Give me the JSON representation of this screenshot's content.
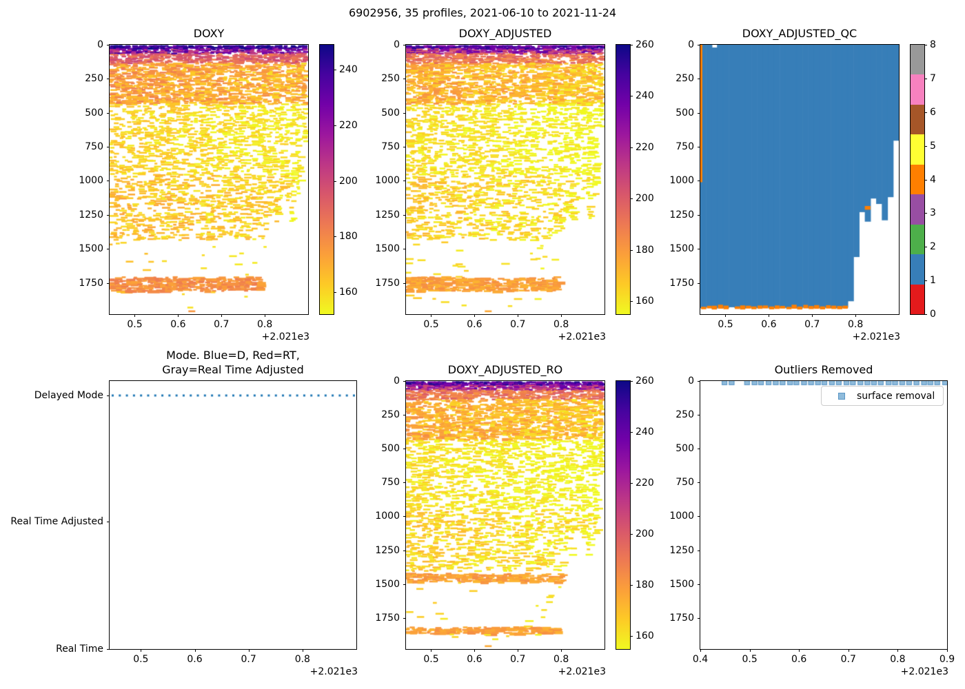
{
  "figure": {
    "suptitle": "6902956, 35 profiles, 2021-06-10 to 2021-11-24"
  },
  "colors": {
    "plasma_top_to_bottom": [
      "#0d0887",
      "#46039f",
      "#7201a8",
      "#9c179e",
      "#bd3786",
      "#d8576b",
      "#ed7953",
      "#fb9f3a",
      "#fdca26",
      "#f0f921"
    ],
    "qc_set1_0_to_8": [
      "#e41a1c",
      "#377eb8",
      "#4daf4a",
      "#984ea3",
      "#ff7f00",
      "#ffff33",
      "#a65628",
      "#f781bf",
      "#999999"
    ],
    "qc_fill_blue": "#377eb8",
    "qc_orange": "#ff7f00",
    "mode_dot_blue": "#1f77b4",
    "outlier_marker_fill": "#8fbbdb",
    "outlier_marker_edge": "#5a96c5",
    "axis_black": "#000000"
  },
  "shared": {
    "n_profiles": 35,
    "date_start": "2021-06-10",
    "date_end": "2021-11-24",
    "x_offset_notation": "+2.021e3",
    "depth_axis_max": 1980,
    "profile_max_depths": [
      1936,
      1930,
      1938,
      1932,
      1936,
      1929,
      1934,
      1938,
      1931,
      1936,
      1933,
      1930,
      1937,
      1934,
      1931,
      1936,
      1932,
      1938,
      1930,
      1935,
      1933,
      1937,
      1931,
      1934,
      1936,
      1932,
      1885,
      1560,
      1230,
      1300,
      1130,
      1170,
      1290,
      1120,
      705
    ]
  },
  "chart_data": [
    {
      "id": "doxy",
      "type": "scatter",
      "title": "DOXY",
      "x_offset": "+2.021e3",
      "xlim": [
        0.442,
        0.9
      ],
      "xticks": {
        "values": [
          0.5,
          0.6,
          0.7,
          0.8
        ],
        "labels": [
          "0.5",
          "0.6",
          "0.7",
          "0.8"
        ]
      },
      "ylim": [
        0,
        1980
      ],
      "yticks": {
        "values": [
          0,
          250,
          500,
          750,
          1000,
          1250,
          1500,
          1750
        ],
        "labels": [
          "0",
          "250",
          "500",
          "750",
          "1000",
          "1250",
          "1500",
          "1750"
        ]
      },
      "colorbar": {
        "vmin": 152,
        "vmax": 249,
        "ticks": [
          240,
          220,
          200,
          180,
          160
        ],
        "labels": [
          "240",
          "220",
          "200",
          "180",
          "160"
        ]
      },
      "surface_values_range": [
        220,
        260
      ],
      "mid_values_range": [
        156,
        185
      ],
      "data_floor_depth": 1430,
      "deep_band": [
        1700,
        1805
      ],
      "deep_band_values": [
        172,
        184
      ],
      "bottom_dash": {
        "profile_index": 14,
        "depth": 1952
      }
    },
    {
      "id": "doxy_adjusted",
      "type": "scatter",
      "title": "DOXY_ADJUSTED",
      "x_offset": "+2.021e3",
      "xlim": [
        0.442,
        0.9
      ],
      "xticks": {
        "values": [
          0.5,
          0.6,
          0.7,
          0.8
        ],
        "labels": [
          "0.5",
          "0.6",
          "0.7",
          "0.8"
        ]
      },
      "ylim": [
        0,
        1980
      ],
      "yticks": {
        "values": [
          0,
          250,
          500,
          750,
          1000,
          1250,
          1500,
          1750
        ],
        "labels": [
          "0",
          "250",
          "500",
          "750",
          "1000",
          "1250",
          "1500",
          "1750"
        ]
      },
      "colorbar": {
        "vmin": 155,
        "vmax": 260,
        "ticks": [
          260,
          240,
          220,
          200,
          180,
          160
        ],
        "labels": [
          "260",
          "240",
          "220",
          "200",
          "180",
          "160"
        ]
      },
      "surface_values_range": [
        220,
        260
      ],
      "mid_values_range": [
        156,
        185
      ],
      "data_floor_depth": 1430,
      "deep_band": [
        1700,
        1805
      ],
      "deep_band_values": [
        172,
        184
      ],
      "bottom_dash": {
        "profile_index": 14,
        "depth": 1952
      }
    },
    {
      "id": "doxy_adjusted_qc",
      "type": "pcolormesh",
      "title": "DOXY_ADJUSTED_QC",
      "x_offset": "+2.021e3",
      "xlim": [
        0.442,
        0.9
      ],
      "xticks": {
        "values": [
          0.5,
          0.6,
          0.7,
          0.8
        ],
        "labels": [
          "0.5",
          "0.6",
          "0.7",
          "0.8"
        ]
      },
      "ylim": [
        0,
        1980
      ],
      "yticks": {
        "values": [
          0,
          250,
          500,
          750,
          1000,
          1250,
          1500,
          1750
        ],
        "labels": [
          "0",
          "250",
          "500",
          "750",
          "1000",
          "1250",
          "1500",
          "1750"
        ]
      },
      "colorbar": {
        "vmin": 0,
        "vmax": 8,
        "ticks": [
          0,
          1,
          2,
          3,
          4,
          5,
          6,
          7,
          8
        ],
        "labels": [
          "0",
          "1",
          "2",
          "3",
          "4",
          "5",
          "6",
          "7",
          "8"
        ]
      },
      "dominant_qc_value": 1,
      "edge_qc_value": 4,
      "left_orange_strip_depth": 1010,
      "bottom_orange_until_profile": 25,
      "orange_patch": {
        "profile_index": 29,
        "depth_top": 1185,
        "depth_bottom": 1212
      },
      "white_notch": {
        "profile_index": 2,
        "depth_top": 0,
        "depth_bottom": 20
      }
    },
    {
      "id": "mode",
      "type": "scatter",
      "title_line1": "Mode. Blue=D, Red=RT,",
      "title_line2": "Gray=Real Time Adjusted",
      "x_offset": "+2.021e3",
      "xlim": [
        0.442,
        0.9
      ],
      "xticks": {
        "values": [
          0.5,
          0.6,
          0.7,
          0.8
        ],
        "labels": [
          "0.5",
          "0.6",
          "0.7",
          "0.8"
        ]
      },
      "yticks": {
        "labels": [
          "Delayed Mode",
          "Real Time Adjusted",
          "Real Time"
        ],
        "fractions": [
          0.054,
          0.525,
          1.0
        ]
      },
      "all_profiles_mode": "Delayed Mode",
      "n_dots": 35
    },
    {
      "id": "doxy_adjusted_ro",
      "type": "scatter",
      "title": "DOXY_ADJUSTED_RO",
      "x_offset": "+2.021e3",
      "xlim": [
        0.442,
        0.9
      ],
      "xticks": {
        "values": [
          0.5,
          0.6,
          0.7,
          0.8
        ],
        "labels": [
          "0.5",
          "0.6",
          "0.7",
          "0.8"
        ]
      },
      "ylim": [
        0,
        1980
      ],
      "yticks": {
        "values": [
          0,
          250,
          500,
          750,
          1000,
          1250,
          1500,
          1750
        ],
        "labels": [
          "0",
          "250",
          "500",
          "750",
          "1000",
          "1250",
          "1500",
          "1750"
        ]
      },
      "colorbar": {
        "vmin": 155,
        "vmax": 260,
        "ticks": [
          260,
          240,
          220,
          200,
          180,
          160
        ],
        "labels": [
          "260",
          "240",
          "220",
          "200",
          "180",
          "160"
        ]
      },
      "surface_values_range": [
        220,
        260
      ],
      "mid_values_range": [
        156,
        185
      ],
      "data_floor_depth": 1400,
      "mid_band": [
        1415,
        1478
      ],
      "deep_band": [
        1812,
        1862
      ],
      "deep_band_values": [
        172,
        184
      ],
      "bottom_dash": {
        "profile_index": 14,
        "depth": 1952
      }
    },
    {
      "id": "outliers",
      "type": "scatter",
      "title": "Outliers Removed",
      "x_offset": "+2.021e3",
      "xlim": [
        0.4,
        0.9
      ],
      "xticks": {
        "values": [
          0.4,
          0.5,
          0.6,
          0.7,
          0.8,
          0.9
        ],
        "labels": [
          "0.4",
          "0.5",
          "0.6",
          "0.7",
          "0.8",
          "0.9"
        ]
      },
      "ylim": [
        0,
        1980
      ],
      "yticks": {
        "values": [
          0,
          250,
          500,
          750,
          1000,
          1250,
          1500,
          1750
        ],
        "labels": [
          "0",
          "250",
          "500",
          "750",
          "1000",
          "1250",
          "1500",
          "1750"
        ]
      },
      "legend_label": "surface removal",
      "marker_depth": 10,
      "markers_x_range": [
        0.443,
        0.9
      ],
      "n_markers": 33,
      "gap_after_index": 1
    }
  ]
}
